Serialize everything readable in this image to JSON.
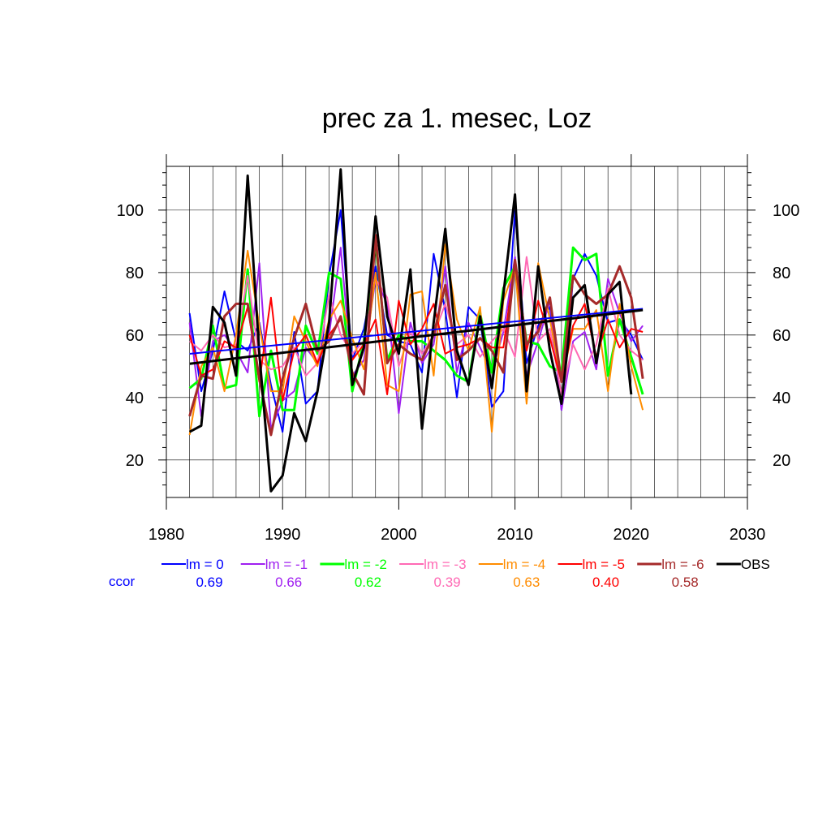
{
  "chart_data": {
    "type": "line",
    "title": "prec za 1. mesec, Loz",
    "xlabel": "",
    "ylabel": "",
    "xlim": [
      1980,
      2030
    ],
    "ylim": [
      8,
      114
    ],
    "x_ticks": [
      1980,
      1990,
      2000,
      2010,
      2020,
      2030
    ],
    "y_ticks": [
      20,
      40,
      60,
      80,
      100
    ],
    "grid": true,
    "legend_position": "bottom",
    "ccor_label": "ccor",
    "x": [
      1982,
      1983,
      1984,
      1985,
      1986,
      1987,
      1988,
      1989,
      1990,
      1991,
      1992,
      1993,
      1994,
      1995,
      1996,
      1997,
      1998,
      1999,
      2000,
      2001,
      2002,
      2003,
      2004,
      2005,
      2006,
      2007,
      2008,
      2009,
      2010,
      2011,
      2012,
      2013,
      2014,
      2015,
      2016,
      2017,
      2018,
      2019,
      2020,
      2021
    ],
    "series": [
      {
        "name": "lm = 0",
        "color": "#0000ff",
        "width": 2,
        "ccor": "0.69",
        "values": [
          67,
          42,
          55,
          74,
          58,
          55,
          64,
          44,
          29,
          61,
          38,
          42,
          79,
          100,
          52,
          62,
          82,
          60,
          58,
          57,
          48,
          86,
          68,
          40,
          69,
          65,
          37,
          42,
          100,
          51,
          63,
          69,
          36,
          78,
          86,
          79,
          64,
          65,
          60,
          52
        ],
        "trend": [
          54.0,
          68.4
        ]
      },
      {
        "name": "lm = -1",
        "color": "#a020f0",
        "width": 2,
        "ccor": "0.66",
        "values": [
          64,
          34,
          58,
          60,
          55,
          48,
          83,
          30,
          39,
          42,
          56,
          51,
          60,
          88,
          47,
          52,
          78,
          70,
          35,
          64,
          51,
          57,
          82,
          48,
          64,
          56,
          48,
          61,
          85,
          47,
          58,
          71,
          36,
          58,
          61,
          49,
          78,
          67,
          58,
          63
        ],
        "trend": null
      },
      {
        "name": "lm = -2",
        "color": "#00ff00",
        "width": 3,
        "ccor": "0.62",
        "values": [
          43,
          46,
          63,
          43,
          44,
          81,
          34,
          55,
          36,
          36,
          63,
          54,
          80,
          78,
          42,
          58,
          90,
          52,
          60,
          58,
          58,
          55,
          52,
          47,
          45,
          67,
          48,
          75,
          82,
          58,
          57,
          50,
          48,
          88,
          84,
          86,
          47,
          65,
          53,
          41
        ],
        "trend": null
      },
      {
        "name": "lm = -3",
        "color": "#ff69b4",
        "width": 2,
        "ccor": "0.39",
        "values": [
          58,
          55,
          60,
          56,
          57,
          79,
          52,
          49,
          50,
          56,
          47,
          51,
          73,
          60,
          54,
          58,
          78,
          72,
          50,
          61,
          54,
          60,
          70,
          57,
          60,
          53,
          58,
          62,
          53,
          85,
          58,
          62,
          41,
          57,
          49,
          57,
          75,
          60,
          55,
          52
        ],
        "trend": null
      },
      {
        "name": "lm = -4",
        "color": "#ff8c00",
        "width": 2,
        "ccor": "0.63",
        "values": [
          28,
          50,
          56,
          42,
          60,
          87,
          63,
          42,
          42,
          66,
          58,
          50,
          65,
          71,
          59,
          49,
          80,
          44,
          42,
          73,
          74,
          47,
          89,
          65,
          55,
          69,
          29,
          71,
          82,
          38,
          83,
          65,
          45,
          62,
          62,
          68,
          42,
          70,
          50,
          36
        ],
        "trend": null
      },
      {
        "name": "lm = -5",
        "color": "#ff0000",
        "width": 2,
        "ccor": "0.40",
        "values": [
          60,
          47,
          49,
          58,
          56,
          69,
          45,
          72,
          39,
          55,
          60,
          51,
          60,
          65,
          52,
          57,
          65,
          41,
          71,
          57,
          62,
          70,
          54,
          56,
          57,
          59,
          56,
          56,
          83,
          55,
          71,
          59,
          45,
          63,
          70,
          53,
          65,
          56,
          62,
          61
        ],
        "trend": null
      },
      {
        "name": "lm = -6",
        "color": "#a52a2a",
        "width": 3,
        "ccor": "0.58",
        "values": [
          34,
          47,
          46,
          66,
          70,
          70,
          46,
          28,
          46,
          59,
          70,
          55,
          58,
          66,
          48,
          41,
          92,
          51,
          57,
          54,
          52,
          60,
          76,
          52,
          55,
          59,
          55,
          48,
          84,
          57,
          61,
          72,
          45,
          79,
          73,
          70,
          73,
          82,
          72,
          46
        ],
        "trend": null
      },
      {
        "name": "OBS",
        "color": "#000000",
        "width": 3,
        "ccor": "",
        "values": [
          29,
          31,
          69,
          64,
          47,
          111,
          54,
          10,
          15,
          35,
          26,
          42,
          64,
          113,
          44,
          56,
          98,
          66,
          54,
          81,
          30,
          64,
          94,
          55,
          44,
          66,
          43,
          73,
          105,
          42,
          82,
          55,
          38,
          72,
          76,
          51,
          73,
          77,
          41,
          null
        ],
        "trend": [
          50.8,
          68.0
        ]
      }
    ]
  }
}
